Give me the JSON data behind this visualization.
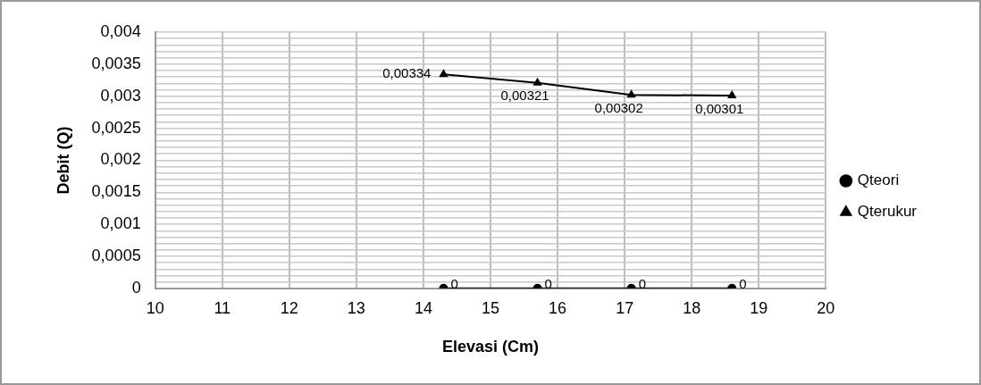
{
  "chart_data": {
    "type": "line",
    "xlabel": "Elevasi (Cm)",
    "ylabel": "Debit (Q)",
    "xlim": [
      10,
      20
    ],
    "xticks": [
      10,
      11,
      12,
      13,
      14,
      15,
      16,
      17,
      18,
      19,
      20
    ],
    "ylim": [
      0,
      0.004
    ],
    "yticks": [
      {
        "value": 0,
        "label": "0"
      },
      {
        "value": 0.0001,
        "label": null
      },
      {
        "value": 0.0002,
        "label": null
      },
      {
        "value": 0.0003,
        "label": null
      },
      {
        "value": 0.0004,
        "label": null
      },
      {
        "value": 0.0005,
        "label": "0,0005"
      },
      {
        "value": 0.0006,
        "label": null
      },
      {
        "value": 0.0007,
        "label": null
      },
      {
        "value": 0.0008,
        "label": null
      },
      {
        "value": 0.0009,
        "label": null
      },
      {
        "value": 0.001,
        "label": "0,001"
      },
      {
        "value": 0.0011,
        "label": null
      },
      {
        "value": 0.0012,
        "label": null
      },
      {
        "value": 0.0013,
        "label": null
      },
      {
        "value": 0.0014,
        "label": null
      },
      {
        "value": 0.0015,
        "label": "0,0015"
      },
      {
        "value": 0.0016,
        "label": null
      },
      {
        "value": 0.0017,
        "label": null
      },
      {
        "value": 0.0018,
        "label": null
      },
      {
        "value": 0.0019,
        "label": null
      },
      {
        "value": 0.002,
        "label": "0,002"
      },
      {
        "value": 0.0021,
        "label": null
      },
      {
        "value": 0.0022,
        "label": null
      },
      {
        "value": 0.0023,
        "label": null
      },
      {
        "value": 0.0024,
        "label": null
      },
      {
        "value": 0.0025,
        "label": "0,0025"
      },
      {
        "value": 0.0026,
        "label": null
      },
      {
        "value": 0.0027,
        "label": null
      },
      {
        "value": 0.0028,
        "label": null
      },
      {
        "value": 0.0029,
        "label": null
      },
      {
        "value": 0.003,
        "label": "0,003"
      },
      {
        "value": 0.0031,
        "label": null
      },
      {
        "value": 0.0032,
        "label": null
      },
      {
        "value": 0.0033,
        "label": null
      },
      {
        "value": 0.0034,
        "label": null
      },
      {
        "value": 0.0035,
        "label": "0,0035"
      },
      {
        "value": 0.0036,
        "label": null
      },
      {
        "value": 0.0037,
        "label": null
      },
      {
        "value": 0.0038,
        "label": null
      },
      {
        "value": 0.0039,
        "label": null
      },
      {
        "value": 0.004,
        "label": "0,004"
      }
    ],
    "x": [
      14.3,
      15.7,
      17.1,
      18.6
    ],
    "series": [
      {
        "name": "Qteori",
        "color": "#000000",
        "marker": "circle",
        "values": [
          0,
          0,
          0,
          0
        ],
        "value_labels": [
          "0",
          "0",
          "0",
          "0"
        ]
      },
      {
        "name": "Qterukur",
        "color": "#000000",
        "marker": "triangle",
        "values": [
          0.00334,
          0.00321,
          0.00302,
          0.00301
        ],
        "value_labels": [
          "0,00334",
          "0,00321",
          "0,00302",
          "0,00301"
        ]
      }
    ],
    "grid": true,
    "legend": "right",
    "line_style": "solid"
  }
}
